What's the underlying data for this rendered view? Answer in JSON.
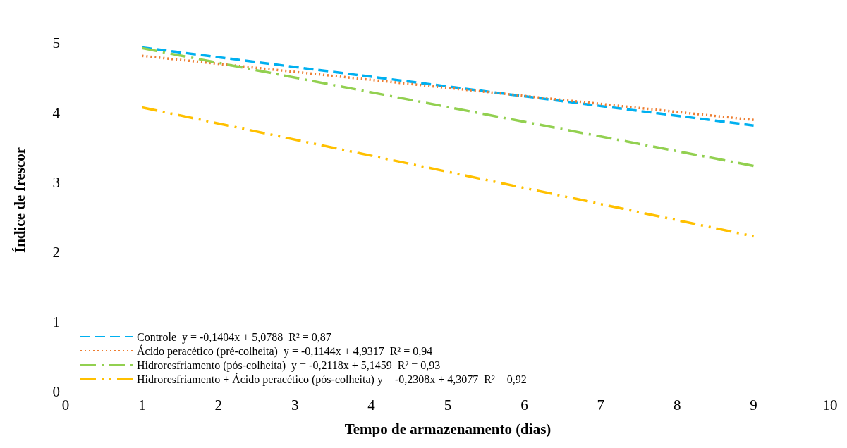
{
  "chart_data": {
    "type": "line",
    "xlabel": "Tempo de armazenamento (dias)",
    "ylabel": "Índice de frescor",
    "xlim": [
      0,
      10
    ],
    "xticks": [
      0,
      1,
      2,
      3,
      4,
      5,
      6,
      7,
      8,
      9,
      10
    ],
    "ylim": [
      0,
      5.5
    ],
    "yticks": [
      0,
      1,
      2,
      3,
      4,
      5
    ],
    "x": [
      1,
      9
    ],
    "grid": false,
    "legend": "bottom left",
    "marker": "none",
    "series": [
      {
        "name": "Controle  y = -0,1404x + 5,0788  R² = 0,87",
        "color": "#00b0f0",
        "line_style": "dashed",
        "values": [
          4.94,
          3.82
        ]
      },
      {
        "name": "Ácido peracético (pré-colheita)  y = -0,1144x + 4,9317  R² = 0,94",
        "color": "#ed7d31",
        "line_style": "dotted",
        "values": [
          4.82,
          3.9
        ]
      },
      {
        "name": "Hidroresfriamento (pós-colheita)  y = -0,2118x + 5,1459  R² = 0,93",
        "color": "#92d050",
        "line_style": "dashdot",
        "values": [
          4.93,
          3.24
        ]
      },
      {
        "name": "Hidroresfriamento + Ácido peracético (pós-colheita) y = -0,2308x + 4,3077  R² = 0,92",
        "color": "#ffc000",
        "line_style": "dashdotdot",
        "values": [
          4.08,
          2.23
        ]
      }
    ]
  }
}
